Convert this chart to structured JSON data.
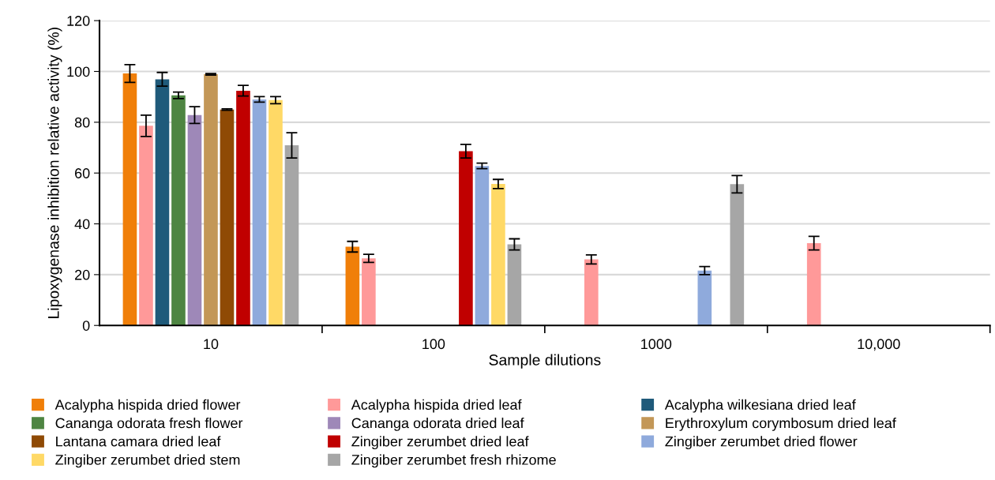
{
  "chart_data": {
    "type": "bar",
    "xlabel": "Sample dilutions",
    "ylabel": "Lipoxygenase inhibition relative activity (%)",
    "categories": [
      "10",
      "100",
      "1000",
      "10,000"
    ],
    "ylim": [
      0,
      120
    ],
    "yticks": [
      0,
      20,
      40,
      60,
      80,
      100,
      120
    ],
    "grid": "y",
    "legend": "bottom",
    "series": [
      {
        "name": "Acalypha hispida dried flower",
        "color": "#f07f09",
        "values": [
          99.2,
          31.0,
          null,
          null
        ],
        "errors": [
          3.5,
          2.1,
          null,
          null
        ]
      },
      {
        "name": "Acalypha hispida dried leaf",
        "color": "#ff9999",
        "values": [
          78.6,
          26.4,
          26.0,
          32.4
        ],
        "errors": [
          4.2,
          1.6,
          1.8,
          2.7
        ]
      },
      {
        "name": "Acalypha wilkesiana dried leaf",
        "color": "#1f5a7a",
        "values": [
          96.9,
          null,
          null,
          null
        ],
        "errors": [
          2.7,
          null,
          null,
          null
        ]
      },
      {
        "name": "Cananga odorata fresh flower",
        "color": "#4e8542",
        "values": [
          90.6,
          null,
          null,
          null
        ],
        "errors": [
          1.3,
          null,
          null,
          null
        ]
      },
      {
        "name": "Cananga odorata dried leaf",
        "color": "#9e88b8",
        "values": [
          82.8,
          null,
          null,
          null
        ],
        "errors": [
          3.3,
          null,
          null,
          null
        ]
      },
      {
        "name": "Erythroxylum corymbosum dried leaf",
        "color": "#c39757",
        "values": [
          98.9,
          null,
          null,
          null
        ],
        "errors": [
          0.3,
          null,
          null,
          null
        ]
      },
      {
        "name": "Lantana camara dried leaf",
        "color": "#8f4a05",
        "values": [
          85.0,
          null,
          null,
          null
        ],
        "errors": [
          0.3,
          null,
          null,
          null
        ]
      },
      {
        "name": "Zingiber zerumbet dried leaf",
        "color": "#c00000",
        "values": [
          92.4,
          68.6,
          null,
          null
        ],
        "errors": [
          2.1,
          2.7,
          null,
          null
        ]
      },
      {
        "name": "Zingiber zerumbet dried flower",
        "color": "#8faadc",
        "values": [
          89.0,
          62.8,
          21.6,
          null
        ],
        "errors": [
          1.1,
          1.1,
          1.6,
          null
        ]
      },
      {
        "name": "Zingiber zerumbet dried stem",
        "color": "#ffd966",
        "values": [
          88.7,
          55.7,
          null,
          null
        ],
        "errors": [
          1.4,
          1.8,
          null,
          null
        ]
      },
      {
        "name": "Zingiber zerumbet fresh rhizome",
        "color": "#a6a6a6",
        "values": [
          70.9,
          31.9,
          55.6,
          null
        ],
        "errors": [
          5.0,
          2.2,
          3.4,
          null
        ]
      }
    ]
  }
}
